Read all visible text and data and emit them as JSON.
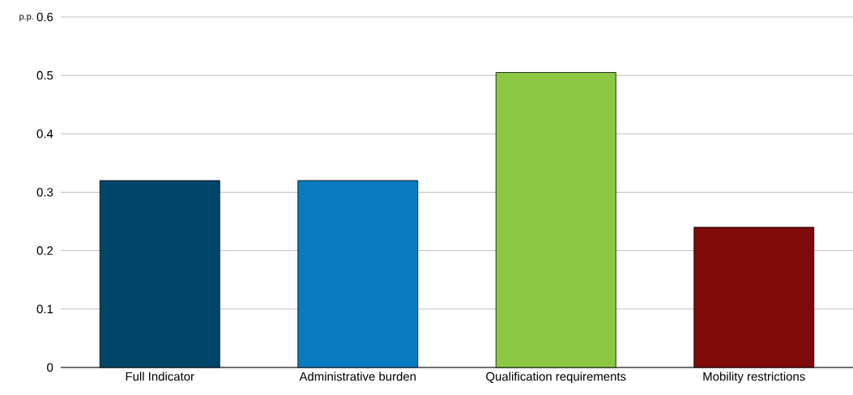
{
  "chart_data": {
    "type": "bar",
    "ylabel": "p.p.",
    "categories": [
      "Full Indicator",
      "Administrative burden",
      "Qualification requirements",
      "Mobility restrictions"
    ],
    "values": [
      0.32,
      0.32,
      0.505,
      0.24
    ],
    "colors": [
      "#00466b",
      "#0b7bc1",
      "#8cc841",
      "#7f0a0a"
    ],
    "ylim": [
      0,
      0.6
    ],
    "yticks": [
      0,
      0.1,
      0.2,
      0.3,
      0.4,
      0.5,
      0.6
    ],
    "grid": "y"
  }
}
